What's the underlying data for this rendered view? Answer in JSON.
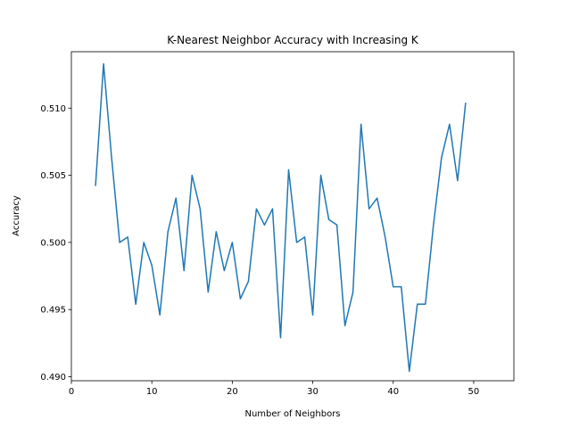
{
  "chart_data": {
    "type": "line",
    "title": "K-Nearest Neighbor Accuracy with Increasing K",
    "xlabel": "Number of Neighbors",
    "ylabel": "Accuracy",
    "xlim": [
      0,
      55
    ],
    "ylim": [
      0.4897,
      0.5142
    ],
    "xticks": [
      0,
      10,
      20,
      30,
      40,
      50
    ],
    "xtick_labels": [
      "0",
      "10",
      "20",
      "30",
      "40",
      "50"
    ],
    "yticks": [
      0.49,
      0.495,
      0.5,
      0.505,
      0.51
    ],
    "ytick_labels": [
      "0.490",
      "0.495",
      "0.500",
      "0.505",
      "0.510"
    ],
    "grid": false,
    "line_color": "#1f77b4",
    "series": [
      {
        "x": [
          3,
          4,
          5,
          6,
          7,
          8,
          9,
          10,
          11,
          12,
          13,
          14,
          15,
          16,
          17,
          18,
          19,
          20,
          21,
          22,
          23,
          24,
          25,
          26,
          27,
          28,
          29,
          30,
          31,
          32,
          33,
          34,
          35,
          36,
          37,
          38,
          39,
          40,
          41,
          42,
          43,
          44,
          45,
          46,
          47,
          48,
          49
        ],
        "values": [
          0.5042,
          0.5133,
          0.5063,
          0.5,
          0.5004,
          0.4954,
          0.5,
          0.4983,
          0.4946,
          0.5008,
          0.5033,
          0.4979,
          0.505,
          0.5025,
          0.4963,
          0.5008,
          0.4979,
          0.5,
          0.4958,
          0.4971,
          0.5025,
          0.5013,
          0.5025,
          0.4929,
          0.5054,
          0.5,
          0.5004,
          0.4946,
          0.505,
          0.5017,
          0.5013,
          0.4938,
          0.4963,
          0.5088,
          0.5025,
          0.5033,
          0.5004,
          0.4967,
          0.4967,
          0.4904,
          0.4954,
          0.4954,
          0.5013,
          0.5063,
          0.5088,
          0.5046,
          0.5104
        ]
      }
    ]
  }
}
